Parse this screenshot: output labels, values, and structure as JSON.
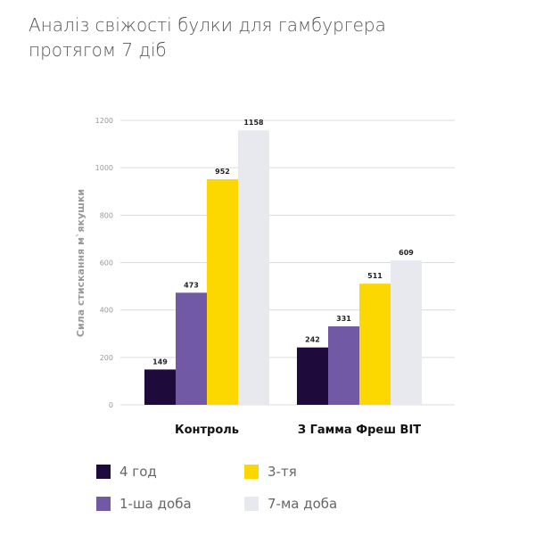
{
  "title": "Аналіз свіжості булки для гамбургера протягом 7 діб",
  "chart_data": {
    "type": "bar",
    "title": "Аналіз свіжості булки для гамбургера протягом 7 діб",
    "xlabel": "",
    "ylabel": "Сила стискання м`якушки",
    "ylim": [
      0,
      1200
    ],
    "yticks": [
      "0",
      "200",
      "400",
      "600",
      "800",
      "1000",
      "1200"
    ],
    "grid": true,
    "legend_position": "bottom",
    "categories": [
      "Контроль",
      "З Гамма Фреш ВІТ"
    ],
    "series": [
      {
        "name": "4 год",
        "color": "#1f0a3c",
        "values": [
          149,
          242
        ]
      },
      {
        "name": "1-ша доба",
        "color": "#7159a6",
        "values": [
          473,
          331
        ]
      },
      {
        "name": "3-тя",
        "color": "#fcd800",
        "values": [
          952,
          511
        ]
      },
      {
        "name": "7-ма доба",
        "color": "#e8e9ef",
        "values": [
          1158,
          609
        ]
      }
    ]
  }
}
